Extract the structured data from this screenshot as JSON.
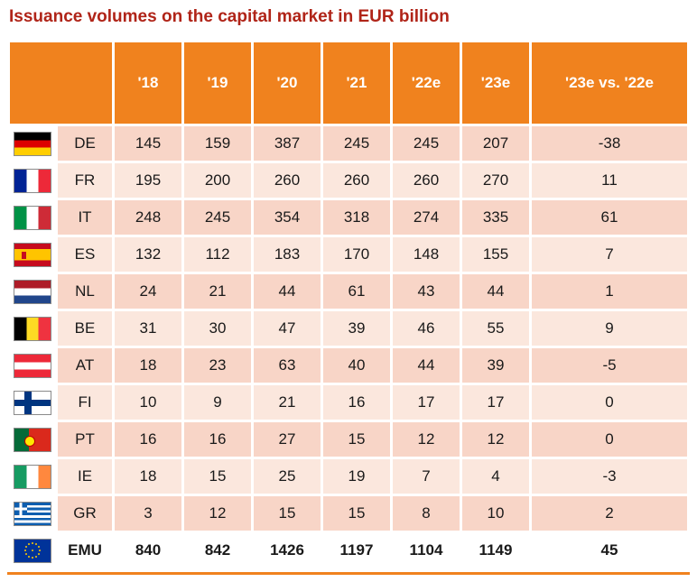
{
  "title": "Issuance volumes on the capital market in EUR billion",
  "colors": {
    "title": "#B02418",
    "header_bg": "#F0821E",
    "row_dark": "#F8D5C7",
    "row_light": "#FBE7DD",
    "emu_bg": "#FFFFFF",
    "text": "#1A1A1A",
    "bottom_line": "#F0821E"
  },
  "chart_data": {
    "type": "table",
    "title": "Issuance volumes on the capital market in EUR billion",
    "unit": "EUR billion",
    "columns": [
      "'18",
      "'19",
      "'20",
      "'21",
      "'22e",
      "'23e",
      "'23e vs. '22e"
    ],
    "rows": [
      {
        "code": "DE",
        "flag_icon": "germany-flag",
        "values": [
          145,
          159,
          387,
          245,
          245,
          207,
          -38
        ]
      },
      {
        "code": "FR",
        "flag_icon": "france-flag",
        "values": [
          195,
          200,
          260,
          260,
          260,
          270,
          11
        ]
      },
      {
        "code": "IT",
        "flag_icon": "italy-flag",
        "values": [
          248,
          245,
          354,
          318,
          274,
          335,
          61
        ]
      },
      {
        "code": "ES",
        "flag_icon": "spain-flag",
        "values": [
          132,
          112,
          183,
          170,
          148,
          155,
          7
        ]
      },
      {
        "code": "NL",
        "flag_icon": "netherlands-flag",
        "values": [
          24,
          21,
          44,
          61,
          43,
          44,
          1
        ]
      },
      {
        "code": "BE",
        "flag_icon": "belgium-flag",
        "values": [
          31,
          30,
          47,
          39,
          46,
          55,
          9
        ]
      },
      {
        "code": "AT",
        "flag_icon": "austria-flag",
        "values": [
          18,
          23,
          63,
          40,
          44,
          39,
          -5
        ]
      },
      {
        "code": "FI",
        "flag_icon": "finland-flag",
        "values": [
          10,
          9,
          21,
          16,
          17,
          17,
          0
        ]
      },
      {
        "code": "PT",
        "flag_icon": "portugal-flag",
        "values": [
          16,
          16,
          27,
          15,
          12,
          12,
          0
        ]
      },
      {
        "code": "IE",
        "flag_icon": "ireland-flag",
        "values": [
          18,
          15,
          25,
          19,
          7,
          4,
          -3
        ]
      },
      {
        "code": "GR",
        "flag_icon": "greece-flag",
        "values": [
          3,
          12,
          15,
          15,
          8,
          10,
          2
        ]
      },
      {
        "code": "EMU",
        "flag_icon": "eu-flag",
        "values": [
          840,
          842,
          1426,
          1197,
          1104,
          1149,
          45
        ],
        "bold": true
      }
    ]
  }
}
